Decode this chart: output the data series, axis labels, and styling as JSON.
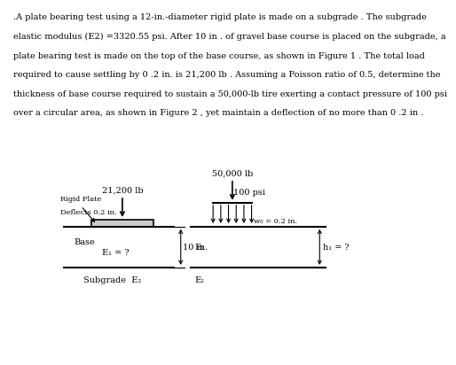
{
  "background_color": "#ffffff",
  "text_color": "#000000",
  "para_lines": [
    ".A plate bearing test using a 12-in.-diameter rigid plate is made on a subgrade . The subgrade",
    "elastic modulus (E2) =3320.55 psi. After 10 in . of gravel base course is placed on the subgrade, a",
    "plate bearing test is made on the top of the base course, as shown in Figure 1 . The total load",
    "required to cause settling by 0 .2 in. is 21,200 lb . Assuming a Poisson ratio of 0.5, determine the",
    "thickness of base course required to sustain a 50,000-lb tire exerting a contact pressure of 100 psi",
    "over a circular area, as shown in Figure 2 , yet maintain a deflection of no more than 0 .2 in ."
  ],
  "fig1": {
    "load_label": "21,200 lb",
    "plate_label_line1": "Rigid Plate",
    "plate_label_line2": "Deflects 0.2 in.",
    "base_label": "Base",
    "E1_label": "E₁ = ?",
    "depth_label": "10 in.",
    "subgrade_label": "Subgrade  E₂"
  },
  "fig2": {
    "load_label": "50,000 lb",
    "pressure_label": "100 psi",
    "deflection_label": "w₀ = 0.2 in.",
    "E1_label": "E₁",
    "h1_label": "h₁ = ?",
    "subgrade_label": "E₂"
  }
}
